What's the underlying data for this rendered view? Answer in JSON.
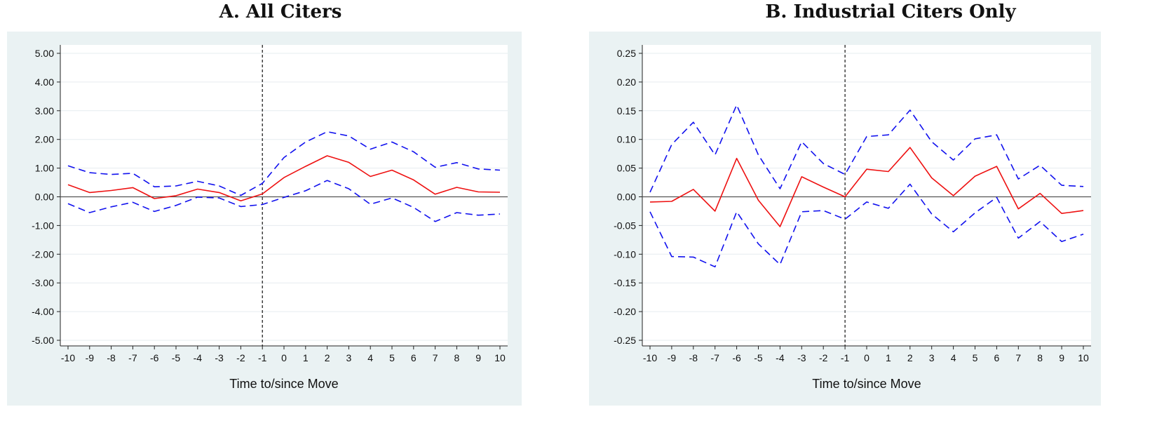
{
  "chart_data": [
    {
      "type": "line",
      "title": "A. All Citers",
      "xlabel": "Time to/since Move",
      "ylabel": "",
      "xlim": [
        -10,
        10
      ],
      "ylim": [
        -5,
        5
      ],
      "x": [
        -10,
        -9,
        -8,
        -7,
        -6,
        -5,
        -4,
        -3,
        -2,
        -1,
        0,
        1,
        2,
        3,
        4,
        5,
        6,
        7,
        8,
        9,
        10
      ],
      "xtick_labels": [
        "-10",
        "-9",
        "-8",
        "-7",
        "-6",
        "-5",
        "-4",
        "-3",
        "-2",
        "-1",
        "0",
        "1",
        "2",
        "3",
        "4",
        "5",
        "6",
        "7",
        "8",
        "9",
        "10"
      ],
      "yticks": [
        -5,
        -4,
        -3,
        -2,
        -1,
        0,
        1,
        2,
        3,
        4,
        5
      ],
      "ytick_labels": [
        "-5.00",
        "-4.00",
        "-3.00",
        "-2.00",
        "-1.00",
        "0.00",
        "1.00",
        "2.00",
        "3.00",
        "4.00",
        "5.00"
      ],
      "vline_x": -1,
      "hline_y": 0,
      "grid": "horizontal",
      "series": [
        {
          "role": "estimate",
          "style": "solid",
          "color": "#ee1111",
          "values": [
            0.42,
            0.15,
            0.22,
            0.32,
            -0.06,
            0.04,
            0.27,
            0.15,
            -0.14,
            0.1,
            0.67,
            1.06,
            1.43,
            1.2,
            0.71,
            0.93,
            0.59,
            0.09,
            0.33,
            0.17,
            0.16
          ]
        },
        {
          "role": "upper-ci",
          "style": "dashed",
          "color": "#1111ee",
          "values": [
            1.08,
            0.84,
            0.78,
            0.82,
            0.35,
            0.38,
            0.54,
            0.38,
            0.05,
            0.47,
            1.37,
            1.91,
            2.27,
            2.12,
            1.66,
            1.91,
            1.57,
            1.03,
            1.19,
            0.97,
            0.93
          ]
        },
        {
          "role": "lower-ci",
          "style": "dashed",
          "color": "#1111ee",
          "values": [
            -0.24,
            -0.55,
            -0.35,
            -0.19,
            -0.51,
            -0.3,
            -0.01,
            -0.04,
            -0.34,
            -0.27,
            -0.02,
            0.21,
            0.57,
            0.28,
            -0.26,
            -0.04,
            -0.37,
            -0.86,
            -0.55,
            -0.64,
            -0.6
          ]
        }
      ]
    },
    {
      "type": "line",
      "title": "B. Industrial Citers Only",
      "xlabel": "Time to/since Move",
      "ylabel": "",
      "xlim": [
        -10,
        10
      ],
      "ylim": [
        -0.25,
        0.25
      ],
      "x": [
        -10,
        -9,
        -8,
        -7,
        -6,
        -5,
        -4,
        -3,
        -2,
        -1,
        0,
        1,
        2,
        3,
        4,
        5,
        6,
        7,
        8,
        9,
        10
      ],
      "xtick_labels": [
        "-10",
        "-9",
        "-8",
        "-7",
        "-6",
        "-5",
        "-4",
        "-3",
        "-2",
        "-1",
        "0",
        "1",
        "2",
        "3",
        "4",
        "5",
        "6",
        "7",
        "8",
        "9",
        "10"
      ],
      "yticks": [
        -0.25,
        -0.2,
        -0.15,
        -0.1,
        -0.05,
        0,
        0.05,
        0.1,
        0.15,
        0.2,
        0.25
      ],
      "ytick_labels": [
        "-0.25",
        "-0.20",
        "-0.15",
        "-0.10",
        "-0.05",
        "0.00",
        "0.05",
        "0.10",
        "0.15",
        "0.20",
        "0.25"
      ],
      "vline_x": -1,
      "hline_y": 0,
      "grid": "horizontal",
      "series": [
        {
          "role": "estimate",
          "style": "solid",
          "color": "#ee1111",
          "values": [
            -0.009,
            -0.008,
            0.013,
            -0.025,
            0.067,
            -0.006,
            -0.052,
            0.035,
            0.017,
            0.0,
            0.048,
            0.044,
            0.086,
            0.033,
            0.002,
            0.036,
            0.053,
            -0.021,
            0.006,
            -0.029,
            -0.024
          ]
        },
        {
          "role": "upper-ci",
          "style": "dashed",
          "color": "#1111ee",
          "values": [
            0.008,
            0.091,
            0.13,
            0.073,
            0.16,
            0.073,
            0.014,
            0.096,
            0.058,
            0.039,
            0.105,
            0.108,
            0.151,
            0.096,
            0.064,
            0.101,
            0.108,
            0.031,
            0.055,
            0.02,
            0.018
          ]
        },
        {
          "role": "lower-ci",
          "style": "dashed",
          "color": "#1111ee",
          "values": [
            -0.026,
            -0.104,
            -0.105,
            -0.122,
            -0.026,
            -0.082,
            -0.118,
            -0.026,
            -0.024,
            -0.039,
            -0.009,
            -0.02,
            0.022,
            -0.03,
            -0.061,
            -0.028,
            -0.001,
            -0.072,
            -0.043,
            -0.078,
            -0.065
          ]
        }
      ]
    }
  ]
}
